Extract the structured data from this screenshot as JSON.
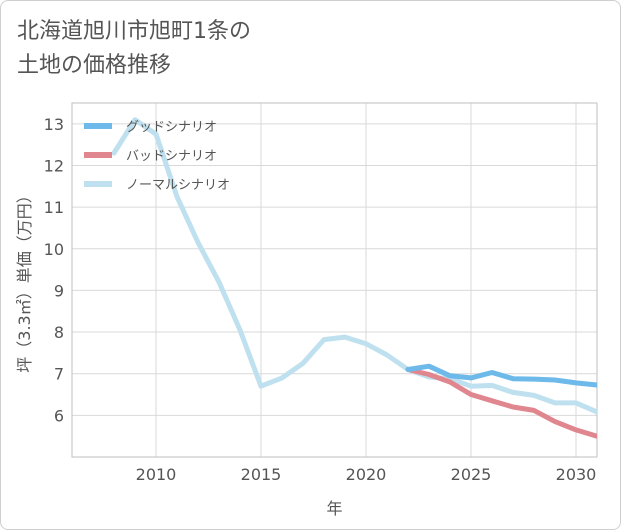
{
  "title_lines": [
    "北海道旭川市旭町1条の",
    "土地の価格推移"
  ],
  "chart_data": {
    "type": "line",
    "title": "北海道旭川市旭町1条の土地の価格推移",
    "xlabel": "年",
    "ylabel": "坪（3.3㎡）単価（万円）",
    "xlim": [
      2006,
      2031
    ],
    "ylim": [
      5,
      13.5
    ],
    "xticks": [
      2010,
      2015,
      2020,
      2025,
      2030
    ],
    "yticks": [
      6,
      7,
      8,
      9,
      10,
      11,
      12,
      13
    ],
    "grid": true,
    "legend_position": "top-left",
    "series": [
      {
        "name": "グッドシナリオ",
        "color": "#6cb9ea",
        "x": [
          2022,
          2023,
          2024,
          2025,
          2026,
          2027,
          2028,
          2029,
          2030,
          2031
        ],
        "y": [
          7.1,
          7.18,
          6.95,
          6.9,
          7.03,
          6.88,
          6.87,
          6.85,
          6.78,
          6.73
        ]
      },
      {
        "name": "バッドシナリオ",
        "color": "#e0868e",
        "x": [
          2022,
          2023,
          2024,
          2025,
          2026,
          2027,
          2028,
          2029,
          2030,
          2031
        ],
        "y": [
          7.1,
          6.98,
          6.8,
          6.5,
          6.35,
          6.2,
          6.12,
          5.85,
          5.65,
          5.5
        ]
      },
      {
        "name": "ノーマルシナリオ",
        "color": "#bfe0ee",
        "x": [
          2008,
          2009,
          2010,
          2011,
          2012,
          2013,
          2014,
          2015,
          2016,
          2017,
          2018,
          2019,
          2020,
          2021,
          2022,
          2023,
          2024,
          2025,
          2026,
          2027,
          2028,
          2029,
          2030,
          2031
        ],
        "y": [
          12.3,
          13.1,
          12.75,
          11.25,
          10.15,
          9.2,
          8.05,
          6.7,
          6.9,
          7.25,
          7.82,
          7.88,
          7.72,
          7.45,
          7.1,
          6.92,
          6.88,
          6.7,
          6.72,
          6.55,
          6.48,
          6.3,
          6.3,
          6.08
        ]
      }
    ]
  }
}
